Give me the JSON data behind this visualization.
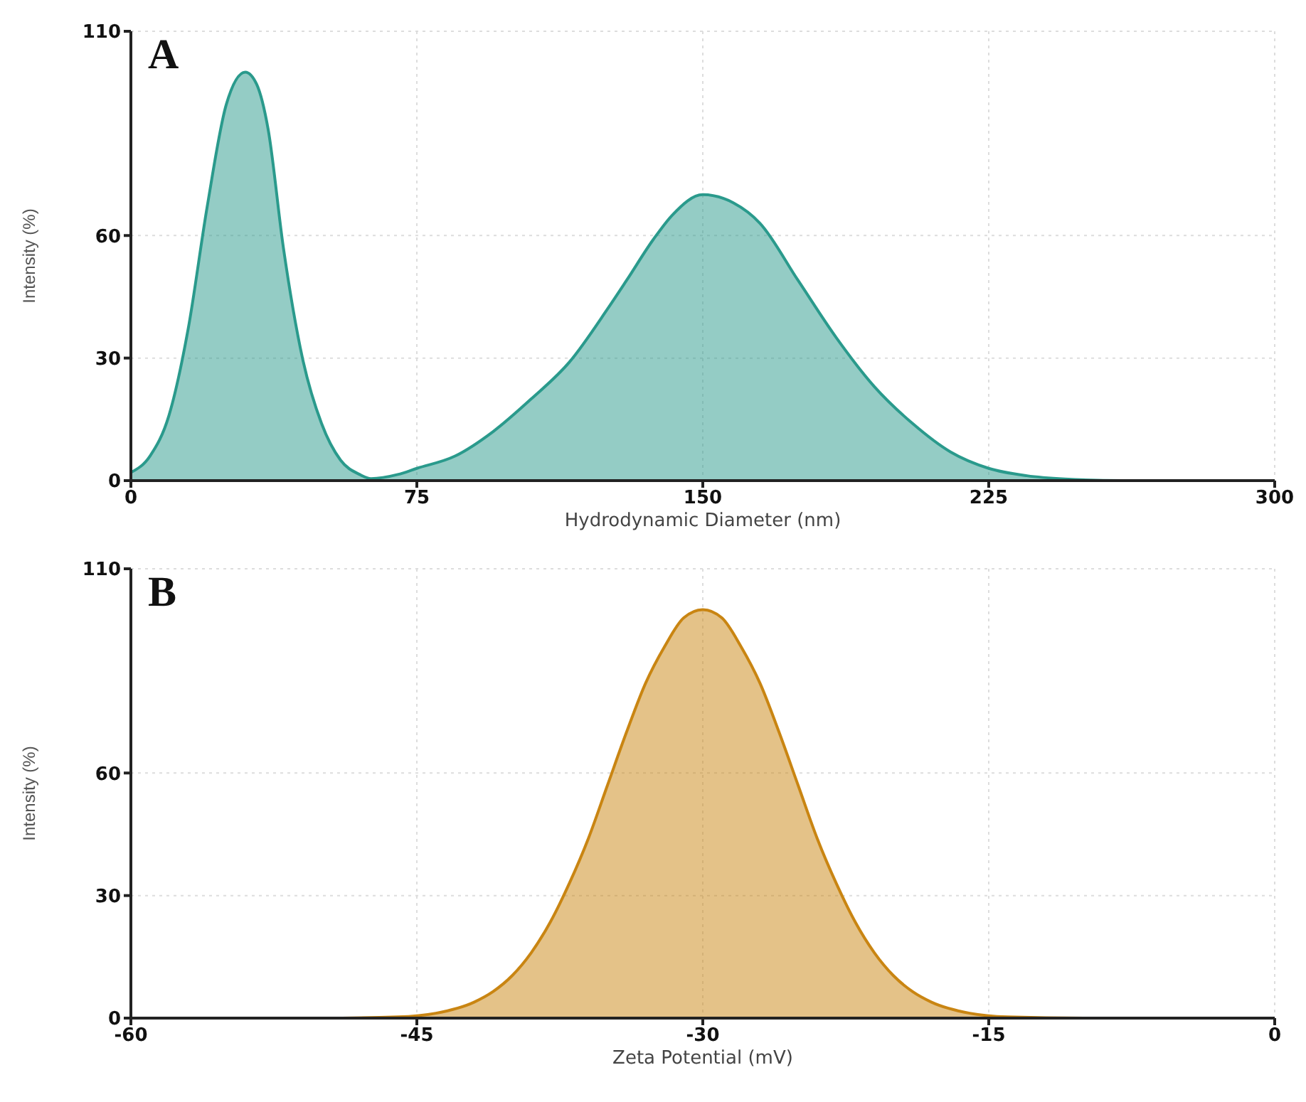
{
  "chart_data": [
    {
      "type": "area",
      "title": "A",
      "xlabel": "Hydrodynamic Diameter (nm)",
      "ylabel": "Intensity (%)",
      "x": [
        0,
        5,
        10,
        15,
        20,
        25,
        30,
        33,
        36,
        40,
        45,
        50,
        55,
        60,
        63,
        70,
        75,
        85,
        95,
        105,
        115,
        125,
        130,
        137,
        142,
        150,
        158,
        165,
        175,
        185,
        195,
        205,
        215,
        225,
        235,
        245,
        260,
        300
      ],
      "series": [
        {
          "color": "#2a9a8c",
          "values": [
            2,
            6,
            16,
            37,
            67,
            92,
            100,
            97,
            86,
            57,
            30,
            14,
            5,
            1.5,
            0.5,
            1.5,
            3,
            6,
            12,
            20,
            29,
            42,
            49,
            59,
            65,
            70,
            68,
            63,
            49,
            35,
            23,
            14,
            7,
            3,
            1.2,
            0.4,
            0,
            0
          ]
        }
      ],
      "xlim": [
        0,
        300
      ],
      "xticks": [
        0,
        75,
        150,
        225,
        300
      ],
      "ylim": [
        0,
        110
      ],
      "yticks": [
        0,
        30,
        60,
        110
      ],
      "grid": true,
      "marker": "none"
    },
    {
      "type": "area",
      "title": "B",
      "xlabel": "Zeta Potential (mV)",
      "ylabel": "Intensity (%)",
      "x": [
        -60,
        -50,
        -46,
        -44,
        -42,
        -41,
        -40,
        -39,
        -38,
        -37,
        -36,
        -35,
        -34,
        -33,
        -32,
        -31,
        -30,
        -29,
        -28,
        -27,
        -26,
        -25,
        -24,
        -23,
        -22,
        -21,
        -20,
        -19,
        -18,
        -16,
        -14,
        -10,
        0
      ],
      "series": [
        {
          "color": "#c98512",
          "values": [
            0,
            0,
            0.3,
            1.2,
            3.9,
            6.5,
            10.4,
            16,
            23.5,
            33,
            44,
            57,
            70,
            82,
            91,
            98,
            100,
            98,
            91,
            82,
            70,
            57,
            44,
            33,
            23.5,
            16,
            10.4,
            6.5,
            3.9,
            1.2,
            0.3,
            0,
            0
          ]
        }
      ],
      "xlim": [
        -60,
        0
      ],
      "xticks": [
        -60,
        -45,
        -30,
        -15,
        0
      ],
      "ylim": [
        0,
        110
      ],
      "yticks": [
        0,
        30,
        60,
        110
      ],
      "grid": true,
      "marker": "none"
    }
  ]
}
